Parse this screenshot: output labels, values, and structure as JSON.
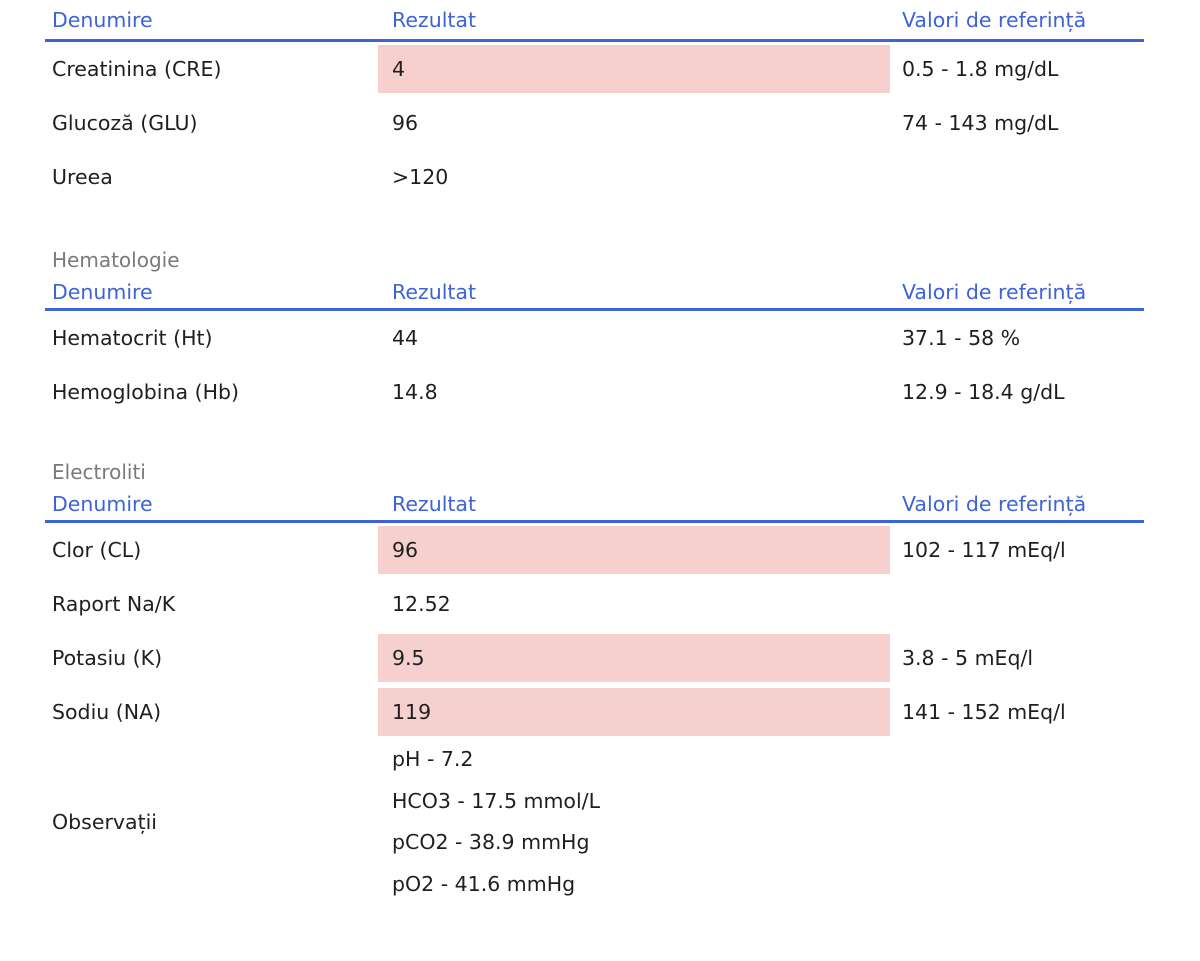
{
  "columns": {
    "name": "Denumire",
    "result": "Rezultat",
    "reference": "Valori de referință"
  },
  "colors": {
    "header_text": "#3d63d6",
    "header_rule": "#3d63d6",
    "abnormal_fill": "#f5d0cf",
    "section_title": "#7a7a7a"
  },
  "biochimie": {
    "rows": [
      {
        "name": "Creatinina (CRE)",
        "result": "4",
        "reference": "0.5 - 1.8 mg/dL",
        "abnormal": true
      },
      {
        "name": "Glucoză (GLU)",
        "result": "96",
        "reference": "74 - 143 mg/dL",
        "abnormal": false
      },
      {
        "name": "Ureea",
        "result": ">120",
        "reference": "",
        "abnormal": false
      }
    ]
  },
  "hematologie": {
    "title": "Hematologie",
    "rows": [
      {
        "name": "Hematocrit (Ht)",
        "result": "44",
        "reference": "37.1 - 58 %",
        "abnormal": false
      },
      {
        "name": "Hemoglobina (Hb)",
        "result": "14.8",
        "reference": "12.9 - 18.4 g/dL",
        "abnormal": false
      }
    ]
  },
  "electroliti": {
    "title": "Electroliti",
    "rows": [
      {
        "name": "Clor (CL)",
        "result": "96",
        "reference": "102 - 117 mEq/l",
        "abnormal": true
      },
      {
        "name": "Raport Na/K",
        "result": "12.52",
        "reference": "",
        "abnormal": false
      },
      {
        "name": "Potasiu (K)",
        "result": "9.5",
        "reference": "3.8 - 5 mEq/l",
        "abnormal": true
      },
      {
        "name": "Sodiu (NA)",
        "result": "119",
        "reference": "141 - 152 mEq/l",
        "abnormal": true
      }
    ],
    "observations": {
      "label": "Observații",
      "lines": [
        "pH - 7.2",
        "HCO3 - 17.5 mmol/L",
        "pCO2 - 38.9 mmHg",
        "pO2 - 41.6 mmHg"
      ]
    }
  }
}
